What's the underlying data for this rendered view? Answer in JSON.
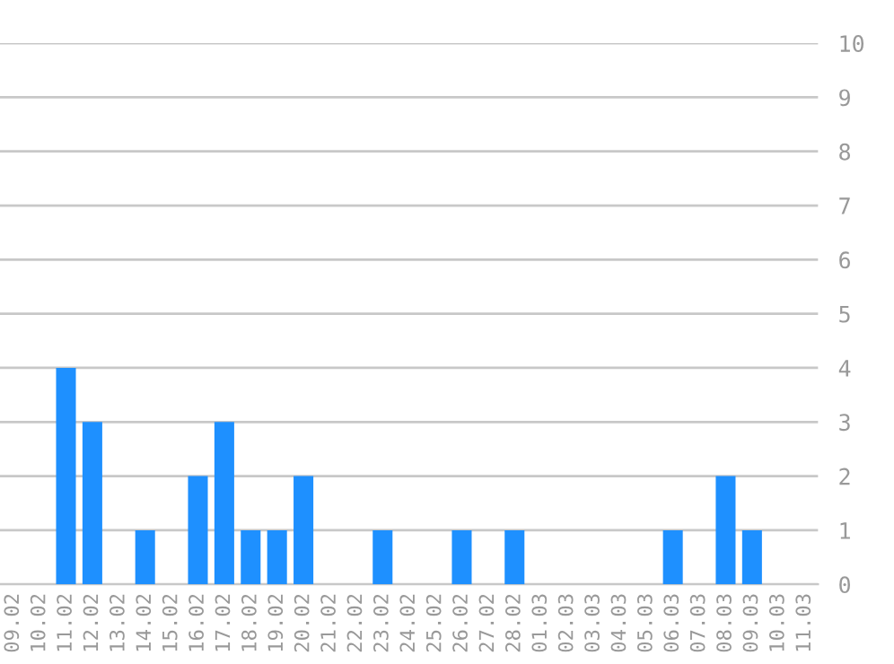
{
  "chart_data": {
    "type": "bar",
    "categories": [
      "09.02",
      "10.02",
      "11.02",
      "12.02",
      "13.02",
      "14.02",
      "15.02",
      "16.02",
      "17.02",
      "18.02",
      "19.02",
      "20.02",
      "21.02",
      "22.02",
      "23.02",
      "24.02",
      "25.02",
      "26.02",
      "27.02",
      "28.02",
      "01.03",
      "02.03",
      "03.03",
      "04.03",
      "05.03",
      "06.03",
      "07.03",
      "08.03",
      "09.03",
      "10.03",
      "11.03"
    ],
    "values": [
      0,
      0,
      4,
      3,
      0,
      1,
      0,
      2,
      3,
      1,
      1,
      2,
      0,
      0,
      1,
      0,
      0,
      1,
      0,
      1,
      0,
      0,
      0,
      0,
      0,
      1,
      0,
      2,
      1,
      0,
      0
    ],
    "color": "#1e90ff",
    "ylim": [
      0,
      10
    ],
    "yticks": [
      0,
      1,
      2,
      3,
      4,
      5,
      6,
      7,
      8,
      9,
      10
    ],
    "grid": "y"
  }
}
